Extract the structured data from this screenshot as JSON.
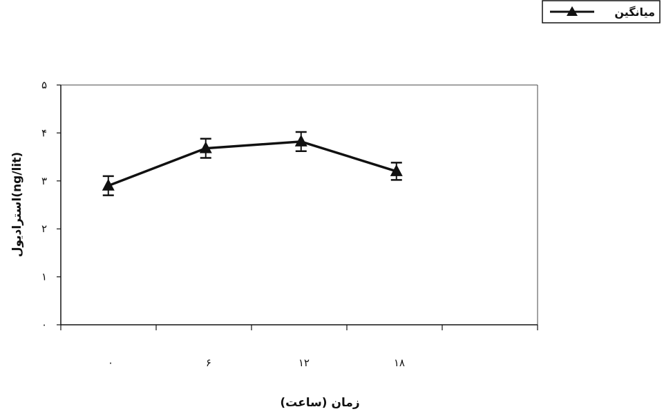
{
  "chart_data": {
    "type": "line",
    "categories": [
      "۰",
      "۶",
      "۱۲",
      "۱۸"
    ],
    "series": [
      {
        "name": "میانگین",
        "values": [
          2.9,
          3.68,
          3.82,
          3.2
        ],
        "error": [
          0.2,
          0.2,
          0.2,
          0.18
        ],
        "color": "#111111",
        "marker": "triangle"
      }
    ],
    "xlabel": "زمان (ساعت)",
    "ylabel": "استرادیول(ng/lit)",
    "ylim": [
      0,
      5
    ],
    "yticks": [
      0,
      1,
      2,
      3,
      4,
      5
    ],
    "ytick_labels": [
      "۰",
      "۱",
      "۲",
      "۳",
      "۴",
      "۵"
    ],
    "grid": false,
    "legend": "top-right"
  }
}
